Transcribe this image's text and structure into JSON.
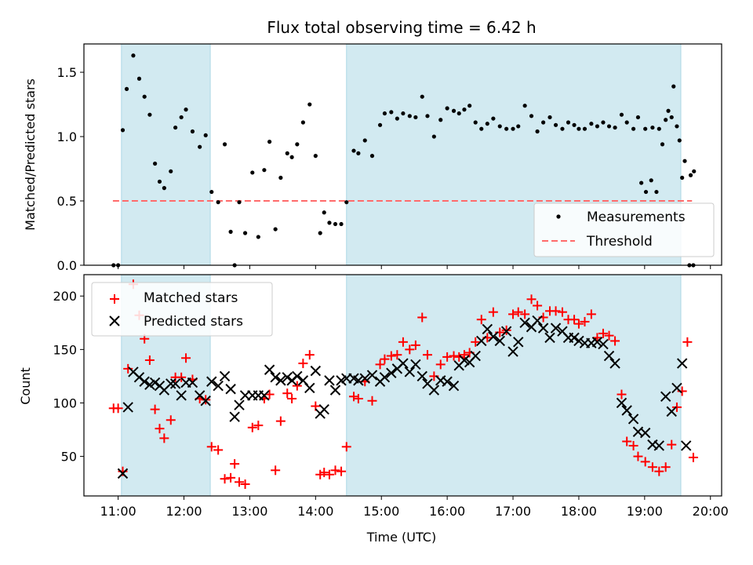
{
  "chart_data": [
    {
      "type": "scatter",
      "title": "Flux total observing time = 6.42 h",
      "xlabel": "",
      "ylabel": "Matched/Predicted stars",
      "xlim": [
        10.48,
        20.17
      ],
      "ylim": [
        0,
        1.72
      ],
      "yticks": [
        0.0,
        0.5,
        1.0,
        1.5
      ],
      "ytick_labels": [
        "0.0",
        "0.5",
        "1.0",
        "1.5"
      ],
      "shaded_x_ranges": [
        [
          11.05,
          12.4
        ],
        [
          14.47,
          19.55
        ]
      ],
      "shade_color": "#add8e6",
      "legend_position": "lower right",
      "series": [
        {
          "name": "Measurements",
          "marker": "dot",
          "color": "#000000",
          "x": [
            10.93,
            11.0,
            11.07,
            11.13,
            11.23,
            11.32,
            11.4,
            11.48,
            11.56,
            11.63,
            11.7,
            11.8,
            11.87,
            11.96,
            12.03,
            12.13,
            12.24,
            12.33,
            12.42,
            12.52,
            12.62,
            12.71,
            12.77,
            12.84,
            12.93,
            13.04,
            13.13,
            13.22,
            13.3,
            13.39,
            13.47,
            13.57,
            13.64,
            13.72,
            13.81,
            13.91,
            14.0,
            14.07,
            14.13,
            14.21,
            14.3,
            14.39,
            14.47,
            14.58,
            14.65,
            14.75,
            14.86,
            14.98,
            15.05,
            15.15,
            15.24,
            15.33,
            15.43,
            15.52,
            15.62,
            15.7,
            15.8,
            15.9,
            16.0,
            16.1,
            16.18,
            16.26,
            16.34,
            16.43,
            16.52,
            16.61,
            16.7,
            16.8,
            16.9,
            17.0,
            17.08,
            17.18,
            17.28,
            17.37,
            17.46,
            17.56,
            17.65,
            17.75,
            17.84,
            17.93,
            18.0,
            18.09,
            18.19,
            18.28,
            18.37,
            18.46,
            18.55,
            18.65,
            18.73,
            18.83,
            18.9,
            19.01,
            19.12,
            19.22,
            19.32,
            19.41,
            19.49,
            19.57,
            19.7,
            19.75
          ],
          "y": [
            0.0,
            0.0,
            1.05,
            1.37,
            1.63,
            1.45,
            1.31,
            1.17,
            0.79,
            0.65,
            0.6,
            0.73,
            1.07,
            1.15,
            1.21,
            1.04,
            0.92,
            1.01,
            0.57,
            0.49,
            0.94,
            0.26,
            0.0,
            0.49,
            0.25,
            0.72,
            0.22,
            0.74,
            0.96,
            0.28,
            0.68,
            0.87,
            0.84,
            0.94,
            1.11,
            1.25,
            0.85,
            0.25,
            0.41,
            0.33,
            0.32,
            0.32,
            0.49,
            0.89,
            0.87,
            0.97,
            0.85,
            1.09,
            1.18,
            1.19,
            1.14,
            1.18,
            1.16,
            1.15,
            1.31,
            1.16,
            1.0,
            1.13,
            1.22,
            1.2,
            1.18,
            1.21,
            1.24,
            1.11,
            1.06,
            1.1,
            1.14,
            1.08,
            1.06,
            1.06,
            1.08,
            1.24,
            1.16,
            1.04,
            1.11,
            1.15,
            1.09,
            1.06,
            1.11,
            1.09,
            1.06,
            1.06,
            1.1,
            1.08,
            1.11,
            1.08,
            1.07,
            1.17,
            1.11,
            1.06,
            1.15,
            1.06,
            1.07,
            1.06,
            1.13,
            1.15,
            1.08,
            0.68,
            0.7,
            0.73
          ],
          "_extra_x": [
            18.95,
            19.02,
            19.1,
            19.18,
            19.27,
            19.36,
            19.44,
            19.53
          ],
          "_extra_y": [
            0.64,
            0.57,
            0.66,
            0.57,
            0.94,
            1.2,
            1.39,
            0.97
          ]
        },
        {
          "name": "Threshold",
          "marker": "dashed-line",
          "color": "#ff6b6b",
          "x": [
            10.92,
            19.72
          ],
          "y": [
            0.5,
            0.5
          ]
        }
      ],
      "tail_points": {
        "x": [
          19.61,
          19.68,
          19.74
        ],
        "y": [
          0.81,
          0.0,
          0.0
        ]
      }
    },
    {
      "type": "scatter",
      "title": "",
      "xlabel": "Time (UTC)",
      "ylabel": "Count",
      "xlim": [
        10.48,
        20.17
      ],
      "ylim": [
        13,
        220
      ],
      "yticks": [
        50,
        100,
        150,
        200
      ],
      "ytick_labels": [
        "50",
        "100",
        "150",
        "200"
      ],
      "xticks": [
        11,
        12,
        13,
        14,
        15,
        16,
        17,
        18,
        19,
        20
      ],
      "xtick_labels": [
        "11:00",
        "12:00",
        "13:00",
        "14:00",
        "15:00",
        "16:00",
        "17:00",
        "18:00",
        "19:00",
        "20:00"
      ],
      "shaded_x_ranges": [
        [
          11.05,
          12.4
        ],
        [
          14.47,
          19.55
        ]
      ],
      "shade_color": "#add8e6",
      "legend_position": "upper left",
      "series": [
        {
          "name": "Matched stars",
          "marker": "plus",
          "color": "#ff0000",
          "x": [
            10.93,
            11.0,
            11.07,
            11.15,
            11.23,
            11.32,
            11.4,
            11.48,
            11.56,
            11.63,
            11.7,
            11.8,
            11.87,
            11.96,
            12.03,
            12.13,
            12.24,
            12.33,
            12.42,
            12.52,
            12.62,
            12.71,
            12.77,
            12.84,
            12.93,
            13.04,
            13.13,
            13.22,
            13.3,
            13.39,
            13.47,
            13.57,
            13.64,
            13.72,
            13.81,
            13.91,
            14.0,
            14.07,
            14.13,
            14.21,
            14.3,
            14.39,
            14.47,
            14.58,
            14.65,
            14.75,
            14.86,
            14.98,
            15.05,
            15.15,
            15.24,
            15.33,
            15.43,
            15.52,
            15.62,
            15.7,
            15.8,
            15.9,
            16.0,
            16.1,
            16.18,
            16.26,
            16.34,
            16.43,
            16.52,
            16.61,
            16.7,
            16.8,
            16.9,
            17.0,
            17.08,
            17.18,
            17.28,
            17.37,
            17.46,
            17.56,
            17.65,
            17.75,
            17.84,
            17.93,
            18.0,
            18.09,
            18.19,
            18.28,
            18.37,
            18.46,
            18.55,
            18.65,
            18.73,
            18.83,
            18.9,
            19.01,
            19.12,
            19.22,
            19.32,
            19.41,
            19.49,
            19.57,
            19.65,
            19.74
          ],
          "y": [
            95,
            95,
            36,
            132,
            211,
            182,
            160,
            140,
            94,
            76,
            67,
            84,
            124,
            124,
            142,
            122,
            104,
            103,
            59,
            56,
            29,
            30,
            43,
            26,
            24,
            77,
            79,
            104,
            108,
            37,
            83,
            109,
            104,
            116,
            137,
            145,
            97,
            33,
            35,
            33,
            37,
            36,
            59,
            106,
            104,
            120,
            102,
            136,
            141,
            144,
            145,
            157,
            150,
            154,
            180,
            145,
            125,
            136,
            143,
            144,
            143,
            145,
            147,
            157,
            178,
            161,
            185,
            166,
            168,
            183,
            185,
            183,
            197,
            191,
            180,
            186,
            186,
            185,
            178,
            178,
            174,
            176,
            183,
            161,
            165,
            163,
            158,
            108,
            64,
            60,
            50,
            45,
            40,
            36,
            40,
            61,
            96,
            111,
            157,
            49
          ]
        },
        {
          "name": "Predicted stars",
          "marker": "x",
          "color": "#000000",
          "x": [
            11.07,
            11.15,
            11.23,
            11.32,
            11.4,
            11.48,
            11.56,
            11.63,
            11.7,
            11.8,
            11.87,
            11.96,
            12.03,
            12.13,
            12.24,
            12.33,
            12.42,
            12.52,
            12.62,
            12.71,
            12.77,
            12.84,
            12.93,
            13.04,
            13.13,
            13.22,
            13.3,
            13.39,
            13.47,
            13.57,
            13.64,
            13.72,
            13.81,
            13.91,
            14.0,
            14.07,
            14.13,
            14.21,
            14.3,
            14.39,
            14.47,
            14.58,
            14.65,
            14.75,
            14.86,
            14.98,
            15.05,
            15.15,
            15.24,
            15.33,
            15.43,
            15.52,
            15.62,
            15.7,
            15.8,
            15.9,
            16.0,
            16.1,
            16.18,
            16.26,
            16.34,
            16.43,
            16.52,
            16.61,
            16.7,
            16.8,
            16.9,
            17.0,
            17.08,
            17.18,
            17.28,
            17.37,
            17.46,
            17.56,
            17.65,
            17.75,
            17.84,
            17.93,
            18.0,
            18.09,
            18.19,
            18.28,
            18.37,
            18.46,
            18.55,
            18.65,
            18.73,
            18.83,
            18.9,
            19.01,
            19.12,
            19.22,
            19.32,
            19.41,
            19.49,
            19.57
          ],
          "y": [
            34,
            96,
            129,
            124,
            120,
            117,
            119,
            116,
            112,
            118,
            118,
            107,
            119,
            119,
            107,
            102,
            120,
            116,
            125,
            113,
            87,
            98,
            107,
            107,
            107,
            107,
            131,
            124,
            121,
            124,
            121,
            125,
            121,
            114,
            130,
            90,
            94,
            121,
            112,
            121,
            123,
            123,
            121,
            123,
            126,
            120,
            124,
            128,
            132,
            137,
            129,
            136,
            125,
            118,
            112,
            121,
            120,
            116,
            135,
            140,
            138,
            144,
            158,
            169,
            162,
            158,
            167,
            148,
            157,
            175,
            171,
            177,
            170,
            161,
            170,
            167,
            161,
            161,
            158,
            156,
            156,
            157,
            155,
            144,
            137,
            100,
            93,
            85,
            73,
            72,
            61,
            60,
            106,
            92,
            114,
            137
          ]
        }
      ],
      "tail_points": {
        "x": [
          19.63
        ],
        "y": [
          60
        ]
      }
    }
  ]
}
